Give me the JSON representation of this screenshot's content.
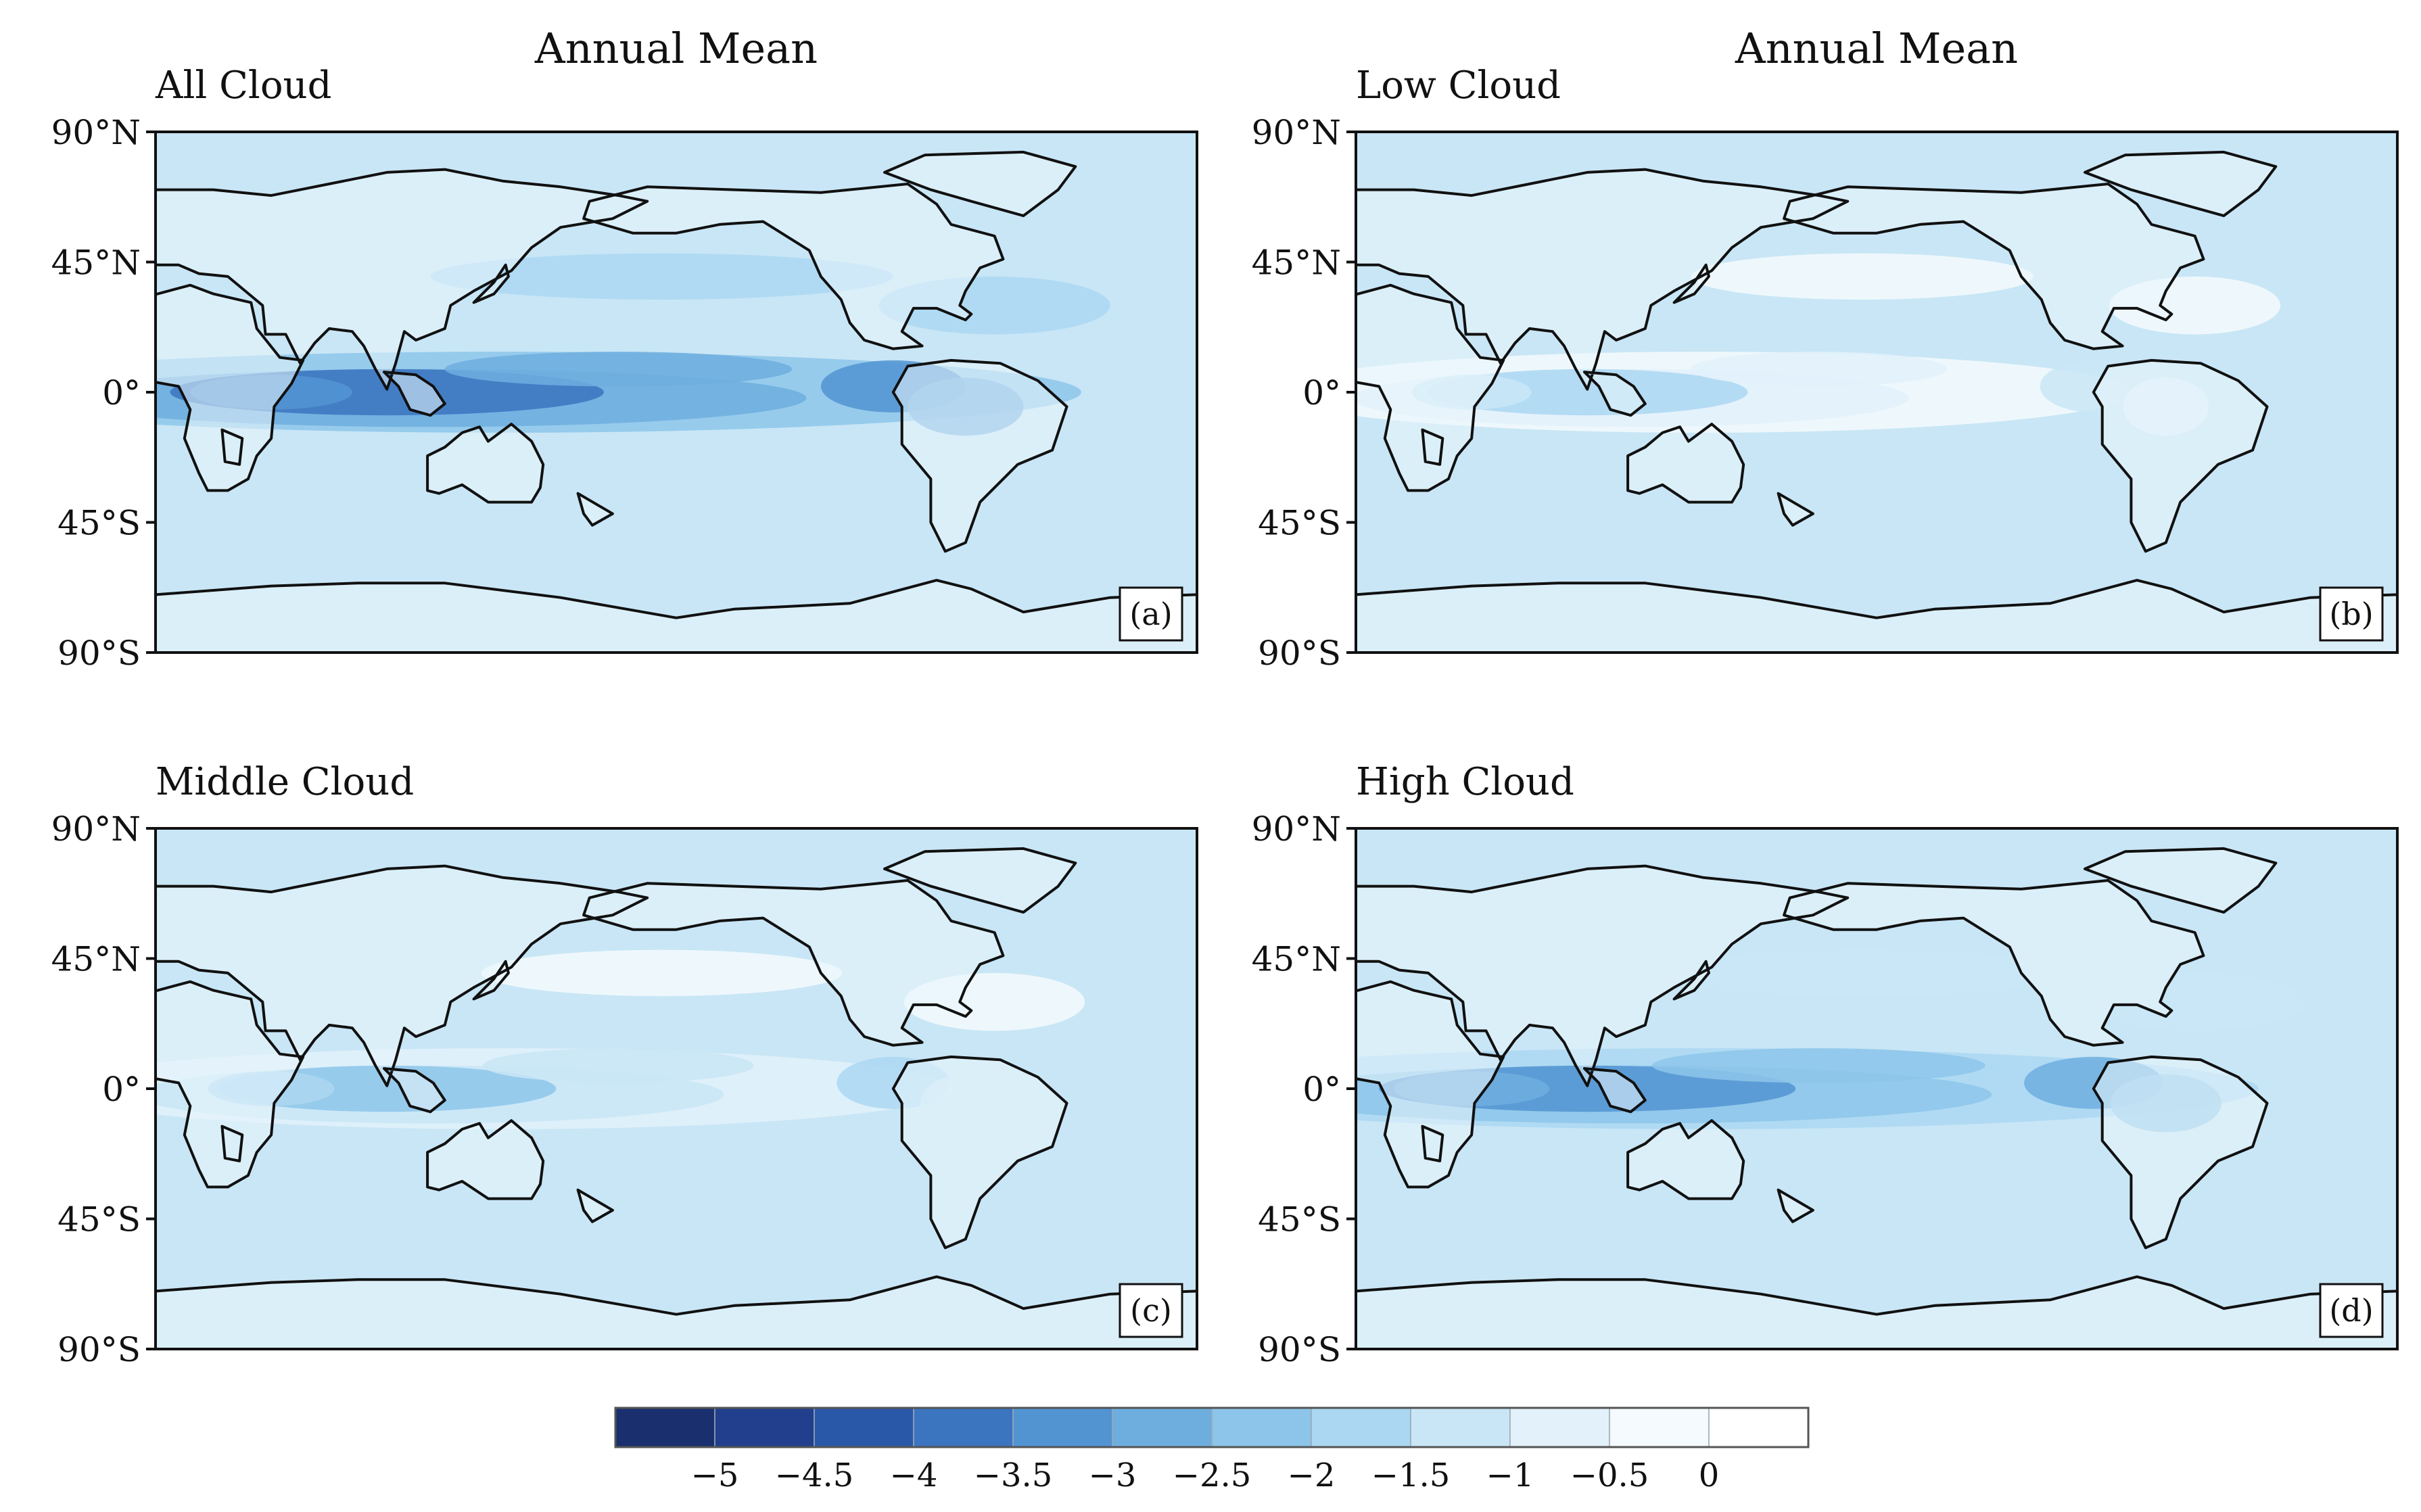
{
  "figure_title": "Annual Mean",
  "ocean_color": "#c9e6f6",
  "land_color": "#eaf5fc",
  "coast_color": "#111111",
  "panels": [
    {
      "id": "a",
      "heading": "Annual Mean",
      "subtitle": "All Cloud",
      "tag": "(a)",
      "intensity": 1.0
    },
    {
      "id": "b",
      "heading": "Annual Mean",
      "subtitle": "Low Cloud",
      "tag": "(b)",
      "intensity": 0.35
    },
    {
      "id": "c",
      "heading": "",
      "subtitle": "Middle Cloud",
      "tag": "(c)",
      "intensity": 0.45
    },
    {
      "id": "d",
      "heading": "",
      "subtitle": "High Cloud",
      "tag": "(d)",
      "intensity": 0.9
    }
  ],
  "chart_data": {
    "type": "heatmap",
    "title": "Annual Mean",
    "yaxis_ticks": [
      "90°N",
      "45°N",
      "0°",
      "45°S",
      "90°S"
    ],
    "colorbar": {
      "tick_labels": [
        "−5",
        "−4.5",
        "−4",
        "−3.5",
        "−3",
        "−2.5",
        "−2",
        "−1.5",
        "−1",
        "−0.5",
        "0"
      ],
      "levels": [
        -5,
        -4.5,
        -4,
        -3.5,
        -3,
        -2.5,
        -2,
        -1.5,
        -1,
        -0.5,
        0
      ],
      "colors": [
        "#1a2f6e",
        "#213f8c",
        "#2a58a8",
        "#3b74bf",
        "#5294d2",
        "#6eaedf",
        "#8dc5ea",
        "#abd7f2",
        "#c9e6f6",
        "#e2f1fa",
        "#f4fafd",
        "#ffffff"
      ]
    }
  }
}
